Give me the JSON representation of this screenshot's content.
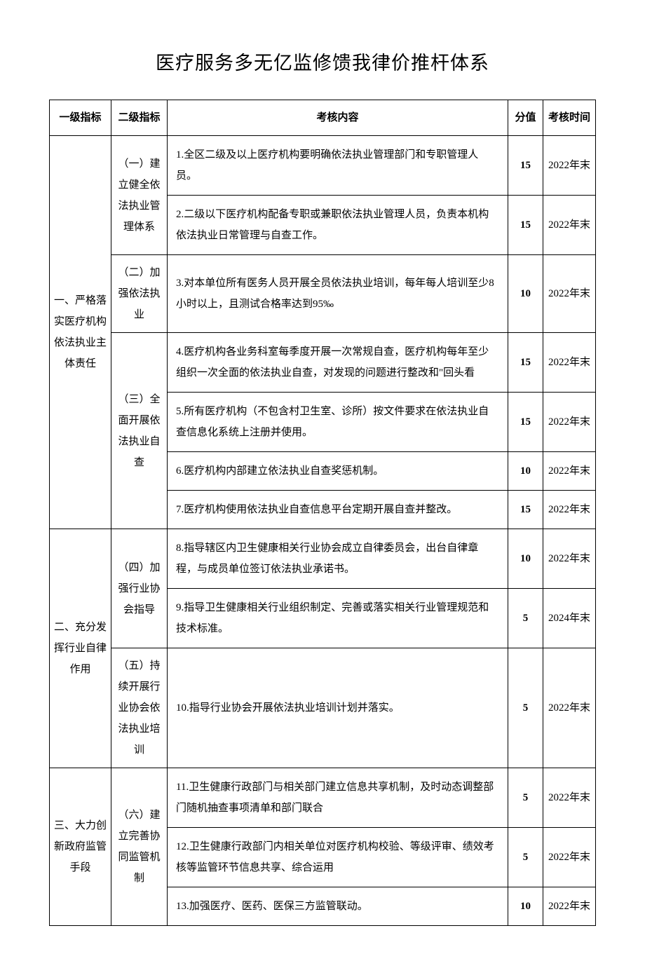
{
  "title": "医疗服务多无亿监修馈我律价推杆体系",
  "headers": {
    "col1": "一级指标",
    "col2": "二级指标",
    "col3": "考核内容",
    "col4": "分值",
    "col5": "考核时间"
  },
  "rows": [
    {
      "level1": "一、严格落实医疗机构依法执业主体责任",
      "level1_rowspan": 7,
      "level2": "（一）建立健全依法执业管理体系",
      "level2_rowspan": 2,
      "content": "1.全区二级及以上医疗机构要明确依法执业管理部门和专职管理人员。",
      "score": "15",
      "time": "2022年末"
    },
    {
      "content": "2.二级以下医疗机构配备专职或兼职依法执业管理人员，负责本机构依法执业日常管理与自查工作。",
      "score": "15",
      "time": "2022年末"
    },
    {
      "level2": "（二）加强依法执业",
      "level2_rowspan": 1,
      "content": "3.对本单位所有医务人员开展全员依法执业培训，每年每人培训至少8小时以上，且测试合格率达到95‰",
      "score": "10",
      "time": "2022年末"
    },
    {
      "level2": "（三）全面开展依法执业自查",
      "level2_rowspan": 4,
      "content": "4.医疗机构各业务科室每季度开展一次常规自查，医疗机构每年至少组织一次全面的依法执业自查，对发现的问题进行整改和\"回头看",
      "score": "15",
      "time": "2022年末"
    },
    {
      "content": "5.所有医疗机构（不包含村卫生室、诊所）按文件要求在依法执业自查信息化系统上注册并使用。",
      "score": "15",
      "time": "2022年末"
    },
    {
      "content": "6.医疗机构内部建立依法执业自查奖惩机制。",
      "score": "10",
      "time": "2022年末"
    },
    {
      "content": "7.医疗机构使用依法执业自查信息平台定期开展自查并整改。",
      "score": "15",
      "time": "2022年末"
    },
    {
      "level1": "二、充分发挥行业自律作用",
      "level1_rowspan": 3,
      "level2": "（四）加强行业协会指导",
      "level2_rowspan": 2,
      "content": "8.指导辖区内卫生健康相关行业协会成立自律委员会，出台自律章程，与成员单位签订依法执业承诺书。",
      "score": "10",
      "time": "2022年末"
    },
    {
      "content": "9.指导卫生健康相关行业组织制定、完善或落实相关行业管理规范和技术标准。",
      "score": "5",
      "time": "2024年末"
    },
    {
      "level2": "（五）持续开展行业协会依法执业培训",
      "level2_rowspan": 1,
      "content": "10.指导行业协会开展依法执业培训计划并落实。",
      "score": "5",
      "time": "2022年末"
    },
    {
      "level1": "三、大力创新政府监管手段",
      "level1_rowspan": 3,
      "level2": "（六）建立完善协同监管机制",
      "level2_rowspan": 3,
      "content": "11.卫生健康行政部门与相关部门建立信息共享机制，及时动态调整部门随机抽查事项清单和部门联合",
      "score": "5",
      "time": "2022年末"
    },
    {
      "content": "12.卫生健康行政部门内相关单位对医疗机构校验、等级评审、绩效考核等监管环节信息共享、综合运用",
      "score": "5",
      "time": "2022年末"
    },
    {
      "content": "13.加强医疗、医药、医保三方监管联动。",
      "score": "10",
      "time": "2022年末"
    }
  ]
}
